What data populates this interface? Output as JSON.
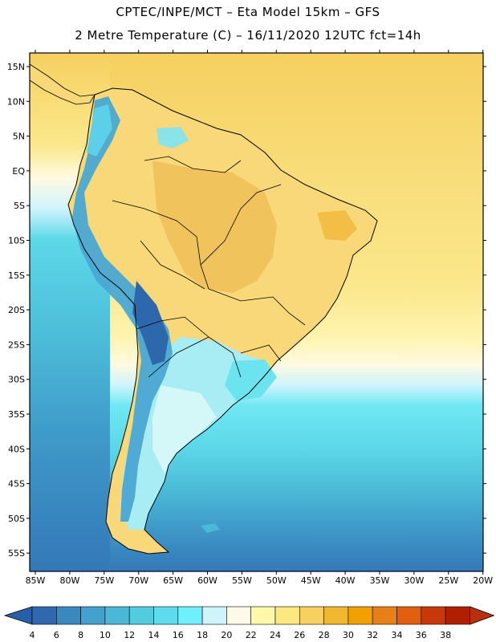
{
  "header": {
    "line1": "CPTEC/INPE/MCT –  Eta Model 15km – GFS",
    "line2": "2 Metre Temperature (C) – 16/11/2020 12UTC fct=14h"
  },
  "map": {
    "lon_range": [
      -85,
      -20
    ],
    "lat_range": [
      -58,
      17
    ],
    "lat_ticks": [
      "15N",
      "10N",
      "5N",
      "EQ",
      "5S",
      "10S",
      "15S",
      "20S",
      "25S",
      "30S",
      "35S",
      "40S",
      "45S",
      "50S",
      "55S"
    ],
    "lon_ticks": [
      "85W",
      "80W",
      "75W",
      "70W",
      "65W",
      "60W",
      "55W",
      "50W",
      "45W",
      "40W",
      "35W",
      "30W",
      "25W",
      "20W"
    ]
  },
  "colorbar": {
    "labels": [
      "4",
      "6",
      "8",
      "10",
      "12",
      "14",
      "16",
      "18",
      "20",
      "22",
      "24",
      "26",
      "28",
      "30",
      "32",
      "34",
      "36",
      "38"
    ],
    "colors": [
      "#3068b0",
      "#3a88c0",
      "#44a0cc",
      "#4cb8d8",
      "#54cce0",
      "#5cdcec",
      "#70f0fc",
      "#d0f4fc",
      "#fffae8",
      "#fff8a8",
      "#fce880",
      "#f8d060",
      "#f0b830",
      "#f0a000",
      "#e88018",
      "#e06010",
      "#c83808",
      "#b02000"
    ],
    "left_arrow_color": "#2860a8",
    "right_arrow_color": "#b83010"
  },
  "legend_colors": {
    "land_warm": "#f8d878",
    "land_hot": "#f0c050",
    "ocean_north": "#f8e080",
    "ocean_mid": "#fff0a0",
    "ocean_cool": "#60d8e8",
    "ocean_cold": "#3a88c0",
    "andes_cold": "#3068b0",
    "patagonia": "#a8f0f0"
  }
}
